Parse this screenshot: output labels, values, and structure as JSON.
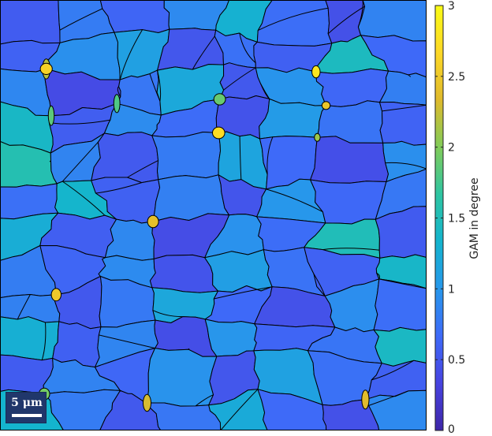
{
  "colorbar": {
    "label": "GAM in degree",
    "min": 0,
    "max": 3,
    "ticks": [
      {
        "value": 0,
        "label": "0"
      },
      {
        "value": 0.5,
        "label": "0.5"
      },
      {
        "value": 1,
        "label": "1"
      },
      {
        "value": 1.5,
        "label": "1.5"
      },
      {
        "value": 2,
        "label": "2"
      },
      {
        "value": 2.5,
        "label": "2.5"
      },
      {
        "value": 3,
        "label": "3"
      }
    ],
    "colormap": [
      "#3e26a8",
      "#4743e0",
      "#3e6af8",
      "#2797eb",
      "#14b4ce",
      "#2ec5a2",
      "#81cc59",
      "#dfba2c",
      "#fdd827",
      "#f9fb15"
    ]
  },
  "scale_bar": {
    "label": "5 μm"
  },
  "map": {
    "background_color": "#3e6af8",
    "boundary_color": "#000000",
    "grains": [
      {
        "v": 0.55
      },
      {
        "v": 0.8
      },
      {
        "v": 0.62
      },
      {
        "v": 0.9
      },
      {
        "v": 1.3
      },
      {
        "v": 0.7
      },
      {
        "v": 0.45
      },
      {
        "v": 0.85
      },
      {
        "v": 0.6
      },
      {
        "v": 0.95
      },
      {
        "v": 1.1
      },
      {
        "v": 0.5
      },
      {
        "v": 0.72
      },
      {
        "v": 0.58
      },
      {
        "v": 1.45
      },
      {
        "v": 0.66
      },
      {
        "v": 0.88
      },
      {
        "v": 0.4
      },
      {
        "v": 0.76
      },
      {
        "v": 1.2
      },
      {
        "v": 0.52
      },
      {
        "v": 0.98
      },
      {
        "v": 0.64
      },
      {
        "v": 0.82
      },
      {
        "v": 1.4
      },
      {
        "v": 0.56
      },
      {
        "v": 0.92
      },
      {
        "v": 0.68
      },
      {
        "v": 0.47
      },
      {
        "v": 1.05
      },
      {
        "v": 0.74
      },
      {
        "v": 0.61
      },
      {
        "v": 1.55
      },
      {
        "v": 0.86
      },
      {
        "v": 0.53
      },
      {
        "v": 0.79
      },
      {
        "v": 1.15
      },
      {
        "v": 0.67
      },
      {
        "v": 0.44
      },
      {
        "v": 0.94
      },
      {
        "v": 0.71
      },
      {
        "v": 1.35
      },
      {
        "v": 0.59
      },
      {
        "v": 0.83
      },
      {
        "v": 0.49
      },
      {
        "v": 1.0
      },
      {
        "v": 0.65
      },
      {
        "v": 0.77
      },
      {
        "v": 1.25
      },
      {
        "v": 0.57
      },
      {
        "v": 0.89
      },
      {
        "v": 0.42
      },
      {
        "v": 0.96
      },
      {
        "v": 0.69
      },
      {
        "v": 1.5
      },
      {
        "v": 0.54
      },
      {
        "v": 0.81
      },
      {
        "v": 0.63
      },
      {
        "v": 0.91
      },
      {
        "v": 0.48
      },
      {
        "v": 1.08
      },
      {
        "v": 0.73
      },
      {
        "v": 0.6
      },
      {
        "v": 1.38
      },
      {
        "v": 0.84
      },
      {
        "v": 0.51
      },
      {
        "v": 0.78
      },
      {
        "v": 1.18
      },
      {
        "v": 0.66
      },
      {
        "v": 0.46
      },
      {
        "v": 0.93
      },
      {
        "v": 0.7
      },
      {
        "v": 1.28
      },
      {
        "v": 0.58
      },
      {
        "v": 0.87
      },
      {
        "v": 0.43
      },
      {
        "v": 0.99
      },
      {
        "v": 0.62
      },
      {
        "v": 0.75
      },
      {
        "v": 1.42
      },
      {
        "v": 0.55
      },
      {
        "v": 0.85
      },
      {
        "v": 0.64
      },
      {
        "v": 0.97
      },
      {
        "v": 0.5
      },
      {
        "v": 1.12
      },
      {
        "v": 0.72
      },
      {
        "v": 0.59
      },
      {
        "v": 1.33
      },
      {
        "v": 0.8
      },
      {
        "v": 0.52
      },
      {
        "v": 0.76
      },
      {
        "v": 1.22
      },
      {
        "v": 0.67
      },
      {
        "v": 0.45
      },
      {
        "v": 0.9
      }
    ],
    "hotspots": [
      {
        "v": 2.4
      },
      {
        "v": 1.95
      },
      {
        "v": 2.5
      },
      {
        "v": 1.8
      },
      {
        "v": 2.7
      },
      {
        "v": 2.3
      },
      {
        "v": 2.45
      },
      {
        "v": 2.2
      },
      {
        "v": 1.9
      },
      {
        "v": 2.6
      },
      {
        "v": 2.35
      },
      {
        "v": 2.8
      },
      {
        "v": 2.1
      },
      {
        "v": 1.85
      }
    ]
  }
}
